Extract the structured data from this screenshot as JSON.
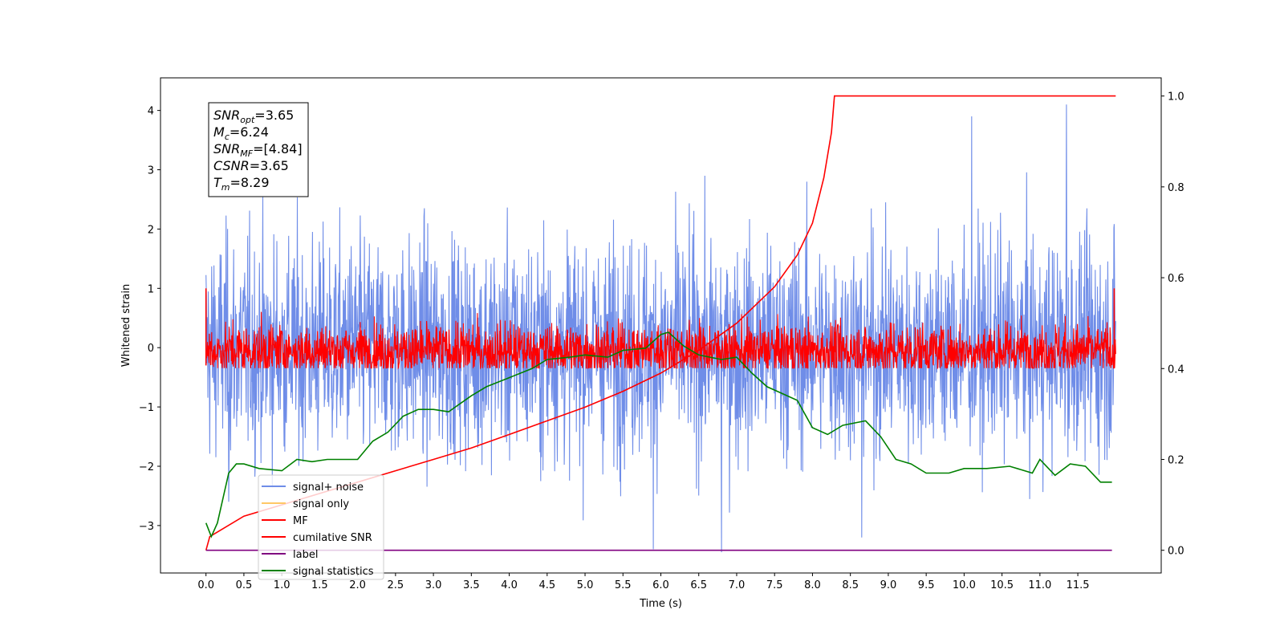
{
  "chart_data": {
    "type": "line",
    "xlabel": "Time (s)",
    "ylabel": "Whitened strain",
    "xlim": [
      -0.6,
      12.6
    ],
    "ylim": [
      -3.8,
      4.55
    ],
    "y2lim": [
      -0.05,
      1.04
    ],
    "x_ticks": [
      "0.0",
      "0.5",
      "1.0",
      "1.5",
      "2.0",
      "2.5",
      "3.0",
      "3.5",
      "4.0",
      "4.5",
      "5.0",
      "5.5",
      "6.0",
      "6.5",
      "7.0",
      "7.5",
      "8.0",
      "8.5",
      "9.0",
      "9.5",
      "10.0",
      "10.5",
      "11.0",
      "11.5"
    ],
    "y_ticks": [
      "−3",
      "−2",
      "−1",
      "0",
      "1",
      "2",
      "3",
      "4"
    ],
    "y2_ticks": [
      "0.0",
      "0.2",
      "0.4",
      "0.6",
      "0.8",
      "1.0"
    ],
    "annotation": {
      "lines": [
        {
          "base": "SNR",
          "sub": "opt",
          "rest": "=3.65"
        },
        {
          "base": "M",
          "sub": "c",
          "rest": "=6.24"
        },
        {
          "base": "SNR",
          "sub": "MF",
          "rest": "=[4.84]"
        },
        {
          "base": "CSNR",
          "sub": "",
          "rest": "=3.65"
        },
        {
          "base": "T",
          "sub": "m",
          "rest": "=8.29"
        }
      ]
    },
    "legend": {
      "placement": "lower-left",
      "entries": [
        {
          "label": "signal+ noise",
          "color": "#6f8de8"
        },
        {
          "label": "signal only",
          "color": "#ffc866"
        },
        {
          "label": "MF",
          "color": "#ff0000"
        },
        {
          "label": "cumilative SNR",
          "color": "#ff0000"
        },
        {
          "label": "label",
          "color": "#800080"
        },
        {
          "label": "signal statistics",
          "color": "#008000"
        }
      ]
    },
    "series": [
      {
        "name": "signal+ noise",
        "axis": "left",
        "color": "#6f8de8",
        "noise": {
          "t_start": 0.0,
          "t_end": 12.0,
          "mean": 0.0,
          "upper_envelope": 2.6,
          "lower_envelope": -2.6,
          "extremes": [
            [
              0.3,
              -2.6
            ],
            [
              5.9,
              -3.4
            ],
            [
              6.8,
              -3.45
            ],
            [
              11.35,
              4.1
            ],
            [
              10.1,
              3.9
            ],
            [
              8.65,
              -3.2
            ]
          ]
        }
      },
      {
        "name": "MF",
        "axis": "left",
        "color": "#ff0000",
        "noise": {
          "t_start": 0.0,
          "t_end": 12.0,
          "mean": -0.05,
          "upper_envelope": 0.6,
          "lower_envelope": -0.3
        }
      },
      {
        "name": "cumilative SNR",
        "axis": "right",
        "color": "#ff0000",
        "x": [
          0.0,
          0.05,
          0.5,
          1.0,
          1.5,
          2.0,
          2.5,
          3.0,
          3.5,
          4.0,
          4.5,
          5.0,
          5.5,
          6.0,
          6.5,
          7.0,
          7.5,
          7.8,
          8.0,
          8.15,
          8.25,
          8.29,
          9.0,
          10.0,
          11.0,
          12.0
        ],
        "y": [
          0.0,
          0.03,
          0.075,
          0.1,
          0.125,
          0.15,
          0.175,
          0.2,
          0.225,
          0.255,
          0.285,
          0.315,
          0.35,
          0.39,
          0.44,
          0.5,
          0.58,
          0.65,
          0.72,
          0.82,
          0.92,
          1.0,
          1.0,
          1.0,
          1.0,
          1.0
        ]
      },
      {
        "name": "label",
        "axis": "right",
        "color": "#800080",
        "x": [
          0.0,
          11.95
        ],
        "y": [
          0.0,
          0.0
        ]
      },
      {
        "name": "signal statistics",
        "axis": "right",
        "color": "#008000",
        "x": [
          0.0,
          0.07,
          0.15,
          0.3,
          0.4,
          0.5,
          0.7,
          1.0,
          1.2,
          1.4,
          1.6,
          1.8,
          2.0,
          2.2,
          2.4,
          2.6,
          2.8,
          3.0,
          3.2,
          3.5,
          3.7,
          4.0,
          4.3,
          4.5,
          4.8,
          5.0,
          5.3,
          5.5,
          5.8,
          6.0,
          6.1,
          6.3,
          6.5,
          6.8,
          7.0,
          7.2,
          7.4,
          7.6,
          7.8,
          8.0,
          8.2,
          8.4,
          8.7,
          8.9,
          9.1,
          9.3,
          9.5,
          9.8,
          10.0,
          10.3,
          10.6,
          10.9,
          11.0,
          11.2,
          11.4,
          11.6,
          11.8,
          11.95
        ],
        "y": [
          0.06,
          0.03,
          0.06,
          0.17,
          0.19,
          0.19,
          0.18,
          0.175,
          0.2,
          0.195,
          0.2,
          0.2,
          0.2,
          0.24,
          0.26,
          0.295,
          0.31,
          0.31,
          0.305,
          0.34,
          0.36,
          0.38,
          0.4,
          0.42,
          0.425,
          0.43,
          0.425,
          0.44,
          0.445,
          0.475,
          0.48,
          0.45,
          0.43,
          0.42,
          0.425,
          0.39,
          0.36,
          0.345,
          0.33,
          0.27,
          0.255,
          0.275,
          0.285,
          0.25,
          0.2,
          0.19,
          0.17,
          0.17,
          0.18,
          0.18,
          0.185,
          0.17,
          0.2,
          0.165,
          0.19,
          0.185,
          0.15,
          0.15
        ]
      }
    ]
  }
}
